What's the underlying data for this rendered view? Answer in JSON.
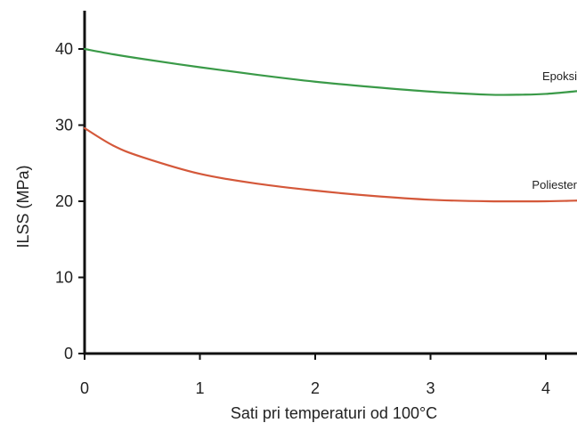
{
  "chart_data": {
    "type": "line",
    "xlabel": "Sati pri temperaturi od 100°C",
    "ylabel": "ILSS (MPa)",
    "xlim": [
      0,
      4.3
    ],
    "ylim": [
      0,
      45
    ],
    "x_ticks": [
      0,
      1,
      2,
      3,
      4
    ],
    "y_ticks": [
      0,
      10,
      20,
      30,
      40
    ],
    "grid": false,
    "legend": "inline-labels",
    "series": [
      {
        "name": "Epoksi",
        "color": "#3a9a48",
        "x": [
          0,
          0.25,
          0.5,
          1,
          1.5,
          2,
          2.5,
          3,
          3.5,
          3.8,
          4,
          4.3
        ],
        "y": [
          40,
          39.3,
          38.7,
          37.6,
          36.6,
          35.7,
          35.0,
          34.4,
          34.0,
          34.0,
          34.1,
          34.5
        ]
      },
      {
        "name": "Poliester",
        "color": "#d4583a",
        "x": [
          0,
          0.25,
          0.5,
          1,
          1.5,
          2,
          2.5,
          3,
          3.5,
          4,
          4.3
        ],
        "y": [
          29.6,
          27.3,
          25.8,
          23.6,
          22.3,
          21.4,
          20.7,
          20.2,
          20.0,
          20.0,
          20.1
        ]
      }
    ]
  }
}
